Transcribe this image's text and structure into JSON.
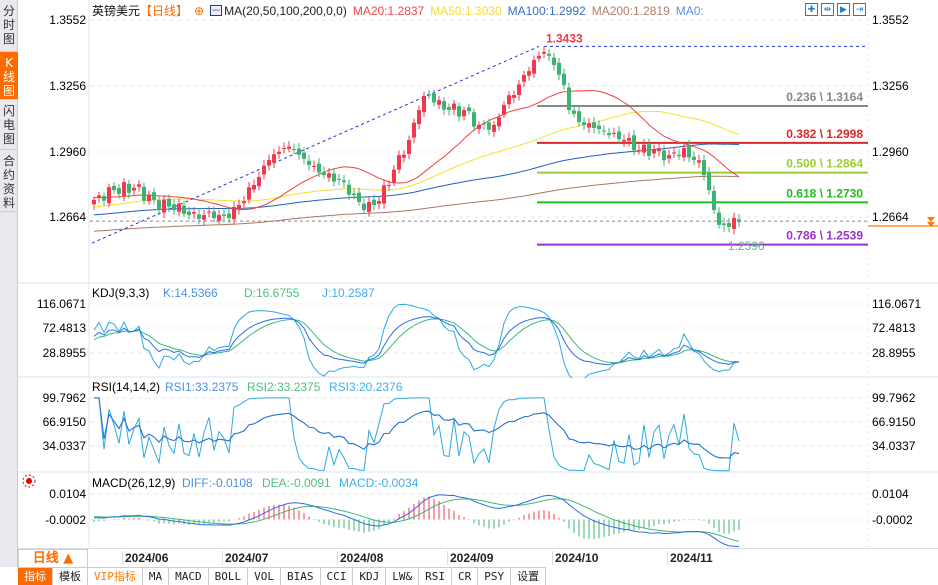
{
  "sidebar": {
    "tabs": [
      {
        "label": "分时图"
      },
      {
        "label": "K线图",
        "active": true
      },
      {
        "label": "闪电图"
      },
      {
        "label": "合约资料"
      }
    ]
  },
  "header": {
    "symbol": "英镑美元",
    "period": "【日线】",
    "ma_label": "MA(20,50,100,200,0,0)",
    "ma20": "MA20:1.2837",
    "ma50": "MA50:1.3030",
    "ma100": "MA100:1.2992",
    "ma200": "MA200:1.2819",
    "ma0": "MA0:",
    "tools": [
      "crosshair",
      "zoom-range",
      "play",
      "exit"
    ]
  },
  "colors": {
    "up": "#f0394f",
    "down": "#3cb371",
    "ma20": "#f04040",
    "ma50": "#f5e030",
    "ma100": "#2060c0",
    "ma200": "#a87860",
    "accent": "#ff6a00"
  },
  "chart_data": [
    {
      "type": "candlestick",
      "title": "英镑美元 日线",
      "y_ticks": [
        "1.3552",
        "1.3256",
        "1.2960",
        "1.2664"
      ],
      "ylim": [
        1.245,
        1.3552
      ],
      "n_candles": 130,
      "close_keypoints": [
        [
          0,
          1.2741
        ],
        [
          4,
          1.2785
        ],
        [
          8,
          1.2795
        ],
        [
          12,
          1.2741
        ],
        [
          16,
          1.2695
        ],
        [
          20,
          1.2686
        ],
        [
          24,
          1.2659
        ],
        [
          27,
          1.2659
        ],
        [
          29,
          1.2718
        ],
        [
          32,
          1.2808
        ],
        [
          35,
          1.2921
        ],
        [
          38,
          1.2975
        ],
        [
          40,
          1.2966
        ],
        [
          43,
          1.2898
        ],
        [
          46,
          1.2853
        ],
        [
          49,
          1.2831
        ],
        [
          52,
          1.2763
        ],
        [
          54,
          1.2695
        ],
        [
          56,
          1.2718
        ],
        [
          59,
          1.2808
        ],
        [
          61,
          1.2943
        ],
        [
          63,
          1.3011
        ],
        [
          65,
          1.3146
        ],
        [
          67,
          1.3214
        ],
        [
          69,
          1.3191
        ],
        [
          71,
          1.3146
        ],
        [
          74,
          1.3146
        ],
        [
          77,
          1.3079
        ],
        [
          80,
          1.3079
        ],
        [
          82,
          1.3169
        ],
        [
          84,
          1.3214
        ],
        [
          86,
          1.3304
        ],
        [
          88,
          1.3372
        ],
        [
          90,
          1.3408
        ],
        [
          92,
          1.3349
        ],
        [
          94,
          1.3259
        ],
        [
          95,
          1.3146
        ],
        [
          97,
          1.3092
        ],
        [
          100,
          1.3065
        ],
        [
          103,
          1.3033
        ],
        [
          106,
          1.3011
        ],
        [
          109,
          1.2966
        ],
        [
          112,
          1.2966
        ],
        [
          115,
          1.2943
        ],
        [
          118,
          1.2975
        ],
        [
          120,
          1.2921
        ],
        [
          122,
          1.2853
        ],
        [
          123,
          1.2785
        ],
        [
          124,
          1.2695
        ],
        [
          126,
          1.2628
        ],
        [
          127,
          1.2619
        ],
        [
          128,
          1.266
        ],
        [
          129,
          1.2641
        ]
      ],
      "prehistory_start": 1.245,
      "high_label": "1.3433",
      "high_value": 1.3433,
      "high_index": 90,
      "low_label": "1.2596",
      "low_value": 1.2596,
      "low_index": 126,
      "current_price": 1.2645,
      "fib_levels": [
        {
          "label": "0.236 \\ 1.3164",
          "value": 1.3164,
          "color": "#888888"
        },
        {
          "label": "0.382 \\ 1.2998",
          "value": 1.2998,
          "color": "#d42a2a"
        },
        {
          "label": "0.500 \\ 1.2864",
          "value": 1.2864,
          "color": "#9acd32"
        },
        {
          "label": "0.618 \\ 1.2730",
          "value": 1.273,
          "color": "#22bb22"
        },
        {
          "label": "0.786 \\ 1.2539",
          "value": 1.2539,
          "color": "#9933cc"
        }
      ],
      "trendline": {
        "from": [
          0,
          1.2546
        ],
        "to": [
          89,
          1.3433
        ]
      },
      "x_ticks": [
        "2024/06",
        "2024/07",
        "2024/08",
        "2024/09",
        "2024/10",
        "2024/11"
      ]
    },
    {
      "type": "line",
      "title": "KDJ(9,3,3)",
      "legend": [
        "K:14.5366",
        "D:16.6755",
        "J:10.2587"
      ],
      "y_ticks": [
        "116.0671",
        "72.4813",
        "28.8955"
      ],
      "ylim": [
        -5,
        130
      ]
    },
    {
      "type": "line",
      "title": "RSI(14,14,2)",
      "legend": [
        "RSI1:33.2375",
        "RSI2:33.2375",
        "RSI3:20.2376"
      ],
      "y_ticks": [
        "99.7962",
        "66.9150",
        "34.0337"
      ],
      "ylim": [
        5,
        125
      ]
    },
    {
      "type": "bar+line",
      "title": "MACD(26,12,9)",
      "legend": [
        "DIFF:-0.0108",
        "DEA:-0.0091",
        "MACD:-0.0034"
      ],
      "y_ticks": [
        "0.0104",
        "-0.0002"
      ],
      "ylim": [
        -0.012,
        0.0185
      ]
    }
  ],
  "dateaxis": {
    "period": "日线 ▲"
  },
  "bottom_tabs": [
    "指标",
    "模板",
    "VIP指标",
    "MA",
    "MACD",
    "BOLL",
    "VOL",
    "BIAS",
    "CCI",
    "KDJ",
    "LW&",
    "RSI",
    "CR",
    "PSY",
    "设置"
  ]
}
